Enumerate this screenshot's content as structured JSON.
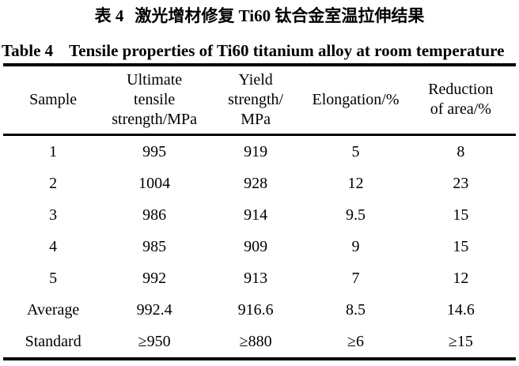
{
  "captions": {
    "zh": {
      "label": "表 4",
      "text": "激光增材修复 Ti60 钛合金室温拉伸结果"
    },
    "en": {
      "label": "Table 4",
      "text": "Tensile properties of Ti60 titanium alloy at room temperature"
    }
  },
  "table": {
    "headers": [
      {
        "id": "sample",
        "label": "Sample"
      },
      {
        "id": "ultimate-tensile-strength",
        "label": "Ultimate\ntensile\nstrength/MPa"
      },
      {
        "id": "yield-strength",
        "label": "Yield\nstrength/\nMPa"
      },
      {
        "id": "elongation",
        "label": "Elongation/%"
      },
      {
        "id": "reduction-of-area",
        "label": "Reduction\nof area/%"
      }
    ],
    "rows": [
      [
        "1",
        "995",
        "919",
        "5",
        "8"
      ],
      [
        "2",
        "1004",
        "928",
        "12",
        "23"
      ],
      [
        "3",
        "986",
        "914",
        "9.5",
        "15"
      ],
      [
        "4",
        "985",
        "909",
        "9",
        "15"
      ],
      [
        "5",
        "992",
        "913",
        "7",
        "12"
      ],
      [
        "Average",
        "992.4",
        "916.6",
        "8.5",
        "14.6"
      ],
      [
        "Standard",
        "≥950",
        "≥880",
        "≥6",
        "≥15"
      ]
    ]
  },
  "chart_data": {
    "type": "table",
    "title": "Table 4 Tensile properties of Ti60 titanium alloy at room temperature",
    "title_zh": "表 4 激光增材修复 Ti60 钛合金室温拉伸结果",
    "columns": [
      "Sample",
      "Ultimate tensile strength/MPa",
      "Yield strength/MPa",
      "Elongation/%",
      "Reduction of area/%"
    ],
    "rows": [
      {
        "sample": "1",
        "ultimate_tensile_strength_MPa": 995,
        "yield_strength_MPa": 919,
        "elongation_pct": 5,
        "reduction_of_area_pct": 8
      },
      {
        "sample": "2",
        "ultimate_tensile_strength_MPa": 1004,
        "yield_strength_MPa": 928,
        "elongation_pct": 12,
        "reduction_of_area_pct": 23
      },
      {
        "sample": "3",
        "ultimate_tensile_strength_MPa": 986,
        "yield_strength_MPa": 914,
        "elongation_pct": 9.5,
        "reduction_of_area_pct": 15
      },
      {
        "sample": "4",
        "ultimate_tensile_strength_MPa": 985,
        "yield_strength_MPa": 909,
        "elongation_pct": 9,
        "reduction_of_area_pct": 15
      },
      {
        "sample": "5",
        "ultimate_tensile_strength_MPa": 992,
        "yield_strength_MPa": 913,
        "elongation_pct": 7,
        "reduction_of_area_pct": 12
      },
      {
        "sample": "Average",
        "ultimate_tensile_strength_MPa": 992.4,
        "yield_strength_MPa": 916.6,
        "elongation_pct": 8.5,
        "reduction_of_area_pct": 14.6
      },
      {
        "sample": "Standard",
        "ultimate_tensile_strength_MPa": "≥950",
        "yield_strength_MPa": "≥880",
        "elongation_pct": "≥6",
        "reduction_of_area_pct": "≥15"
      }
    ]
  }
}
